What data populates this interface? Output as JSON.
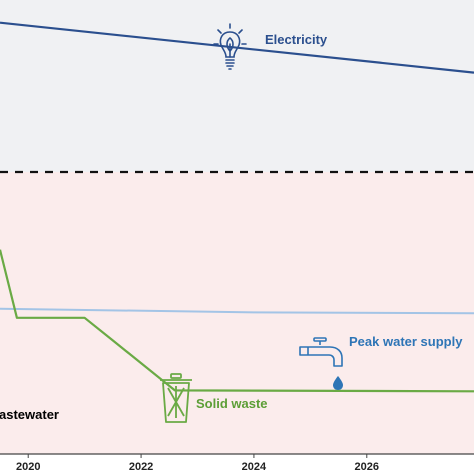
{
  "chart_data": {
    "type": "line",
    "xlabel": "",
    "ylabel": "",
    "x_ticks": [
      "2020",
      "2022",
      "2024",
      "2026"
    ],
    "xlim": [
      2019.5,
      2027.9
    ],
    "colors": {
      "electricity": "#2b4f8e",
      "water": "#a3c4e6",
      "water_label": "#2e75b6",
      "waste": "#6aaa45",
      "waste_label": "#5c9e36",
      "wastewater_label": "#000000",
      "top_band": "#f0f1f3",
      "bottom_band": "#fbecec"
    },
    "series": [
      {
        "key": "electricity",
        "name": "Electricity",
        "icon": "lightbulb-icon",
        "x": [
          2019.5,
          2027.9
        ],
        "y": [
          95,
          84
        ]
      },
      {
        "key": "water",
        "name": "Peak water supply",
        "icon": "faucet-icon",
        "x": [
          2019.5,
          2024.0,
          2027.9
        ],
        "y": [
          32,
          31.2,
          31
        ]
      },
      {
        "key": "waste",
        "name": "Solid waste",
        "icon": "trash-can-icon",
        "x": [
          2019.5,
          2019.8,
          2020.3,
          2021.0,
          2021.5,
          2022.6,
          2027.9
        ],
        "y": [
          45,
          30,
          30,
          30,
          25,
          14,
          13.8
        ]
      },
      {
        "key": "wastewater",
        "name": "astewater",
        "icon": "",
        "x": [],
        "y": []
      }
    ]
  }
}
